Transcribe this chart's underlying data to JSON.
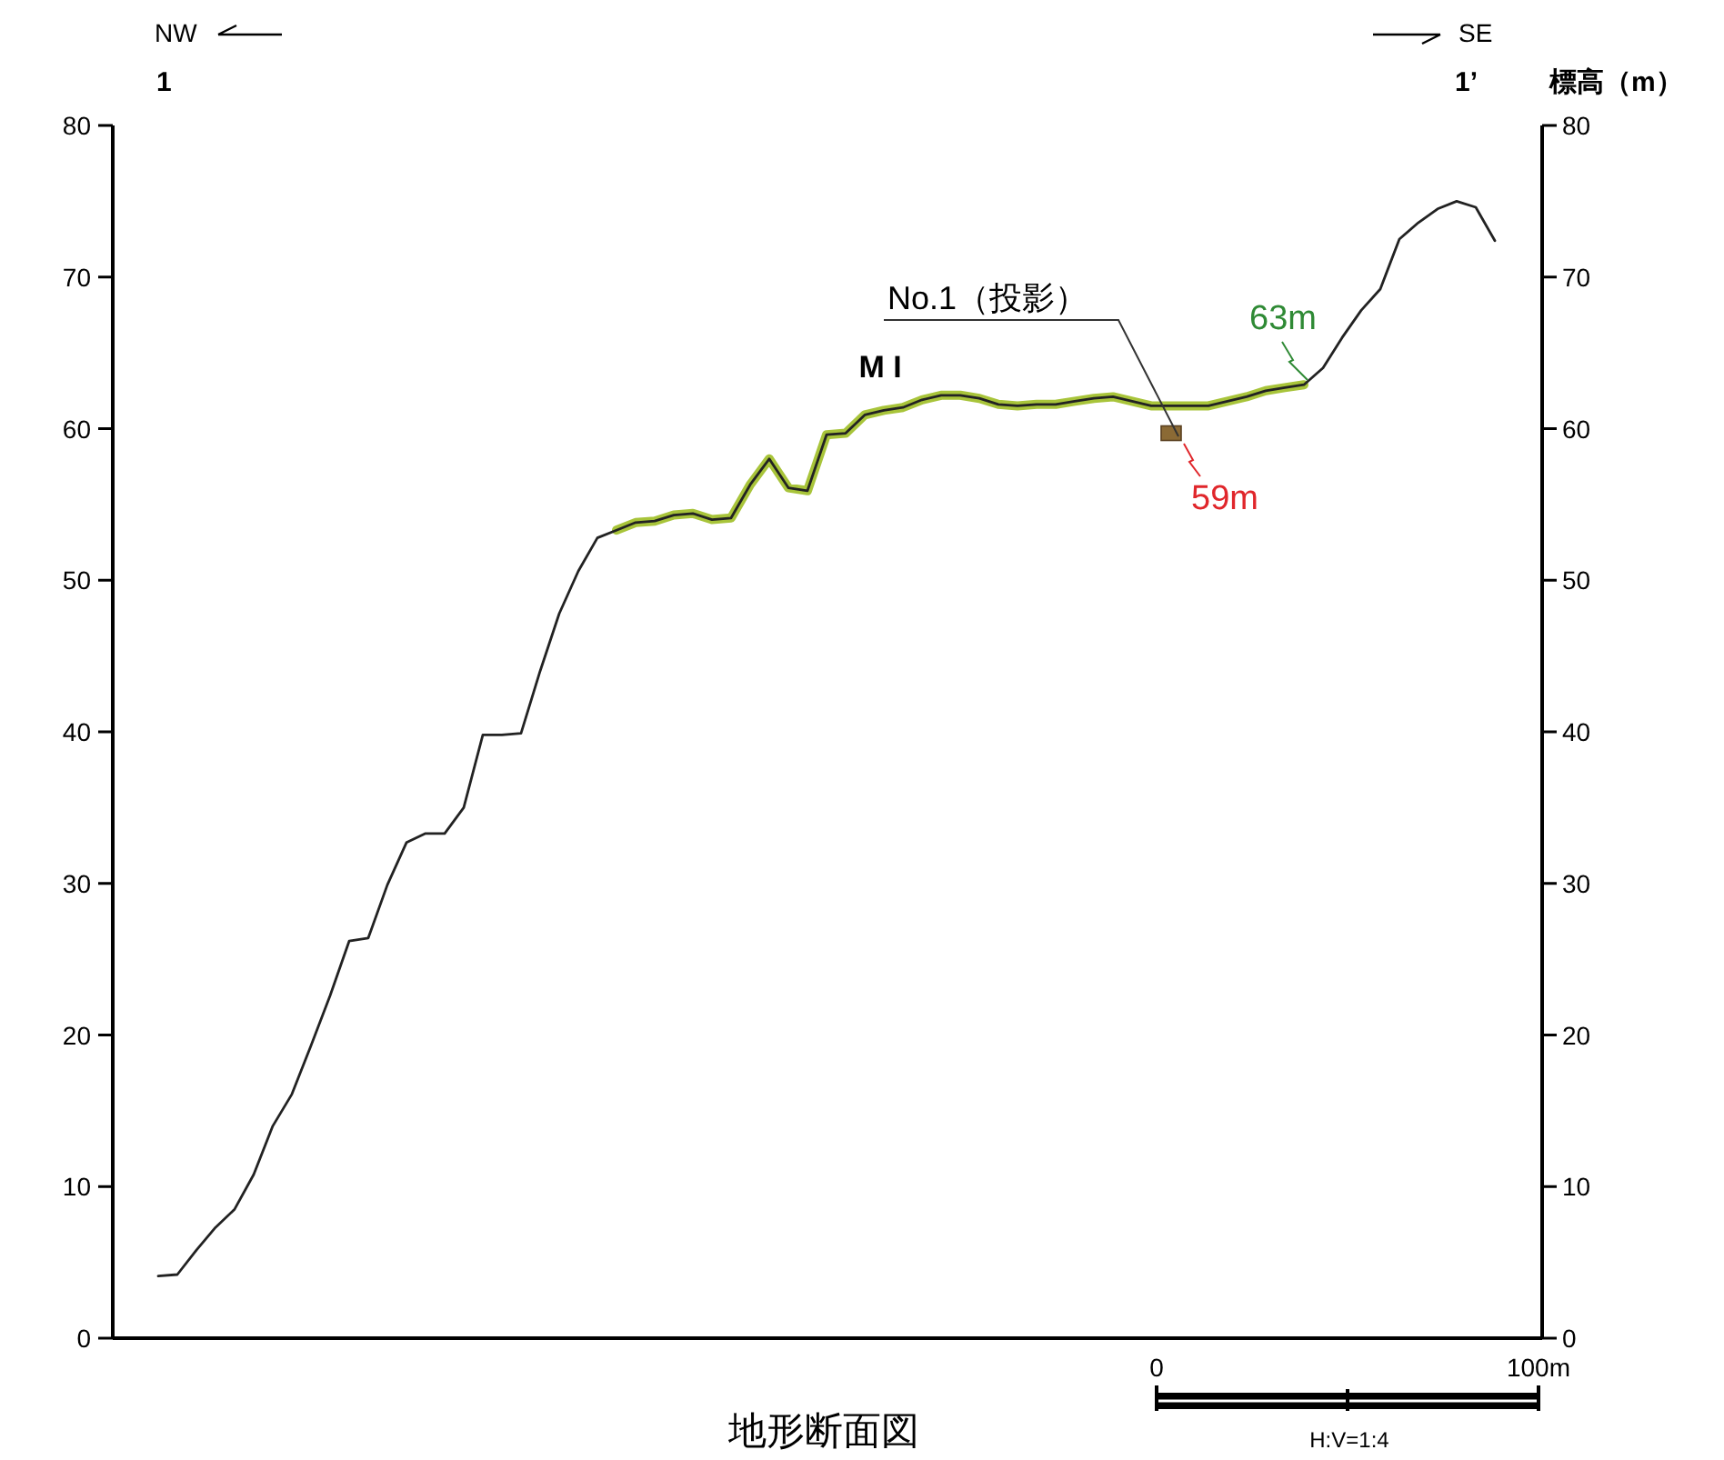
{
  "chart_data": {
    "type": "line",
    "title": "地形断面図",
    "y2label": "標高（m）",
    "categories": [
      null,
      null,
      null,
      null,
      null,
      null,
      null,
      null,
      null,
      null,
      null,
      null,
      null,
      null,
      null,
      null,
      null,
      null,
      null,
      null,
      null,
      null,
      null,
      null,
      null,
      null,
      null,
      null,
      null,
      null,
      null,
      null,
      null,
      null,
      null,
      null,
      null,
      null,
      null,
      null,
      null,
      null,
      null,
      null,
      null,
      null,
      null,
      null,
      null,
      null,
      null,
      null,
      null,
      null,
      null,
      null,
      null,
      null,
      null,
      null,
      null,
      null,
      null,
      null,
      null,
      null,
      null,
      null,
      null,
      null,
      null
    ],
    "series": [
      {
        "color": "#222222",
        "values": [
          4.1,
          4.2,
          5.8,
          7.3,
          8.5,
          10.8,
          14.0,
          16.1,
          19.3,
          22.6,
          26.2,
          26.4,
          29.9,
          32.7,
          33.3,
          33.3,
          35.0,
          39.8,
          39.8,
          39.9,
          44.0,
          47.8,
          50.6,
          52.8,
          53.3,
          53.8,
          53.9,
          54.3,
          54.4,
          54.0,
          54.1,
          56.3,
          58.0,
          56.1,
          55.9,
          59.6,
          59.7,
          60.9,
          61.2,
          61.4,
          61.9,
          62.2,
          62.2,
          62.0,
          61.6,
          61.5,
          61.6,
          61.6,
          61.8,
          62.0,
          62.1,
          61.8,
          61.5,
          61.5,
          61.5,
          61.5,
          61.8,
          62.1,
          62.5,
          62.7,
          62.9,
          64.0,
          66.0,
          67.8,
          69.2,
          72.5,
          73.6,
          74.5,
          75.0,
          74.6,
          72.4
        ]
      },
      {
        "name": "M I",
        "color": "#a8c43a",
        "values": [
          null,
          null,
          null,
          null,
          null,
          null,
          null,
          null,
          null,
          null,
          null,
          null,
          null,
          null,
          null,
          null,
          null,
          null,
          null,
          null,
          null,
          null,
          null,
          null,
          53.3,
          53.8,
          53.9,
          54.3,
          54.4,
          54.0,
          54.1,
          56.3,
          58.0,
          56.1,
          55.9,
          59.6,
          59.7,
          60.9,
          61.2,
          61.4,
          61.9,
          62.2,
          62.2,
          62.0,
          61.6,
          61.5,
          61.6,
          61.6,
          61.8,
          62.0,
          62.1,
          61.8,
          61.5,
          61.5,
          61.5,
          61.5,
          61.8,
          62.1,
          62.5,
          62.7,
          62.9,
          null,
          null,
          null,
          null,
          null,
          null,
          null,
          null,
          null,
          null
        ]
      },
      {
        "type": "scatter",
        "marker": "square",
        "color": "#8b6a35",
        "values": [
          null,
          null,
          null,
          null,
          null,
          null,
          null,
          null,
          null,
          null,
          null,
          null,
          null,
          null,
          null,
          null,
          null,
          null,
          null,
          null,
          null,
          null,
          null,
          null,
          null,
          null,
          null,
          null,
          null,
          null,
          null,
          null,
          null,
          null,
          null,
          null,
          null,
          null,
          null,
          null,
          null,
          null,
          null,
          null,
          null,
          null,
          null,
          null,
          null,
          null,
          null,
          null,
          null,
          59.7,
          null,
          null,
          null,
          null,
          null,
          null,
          null,
          null,
          null,
          null,
          null,
          null,
          null,
          null,
          null,
          null,
          null
        ]
      }
    ],
    "ylim": [
      0,
      80
    ],
    "yticks": [
      0,
      10,
      20,
      30,
      40,
      50,
      60,
      70,
      80
    ],
    "y2lim": [
      0,
      80
    ],
    "y2ticks": [
      0,
      10,
      20,
      30,
      40,
      50,
      60,
      70,
      80
    ],
    "annotations": [
      "NW",
      "SE",
      "1",
      "1’",
      "No.1（投影）",
      "59m",
      "63m",
      "0",
      "100m",
      "H:V=1:4"
    ]
  }
}
